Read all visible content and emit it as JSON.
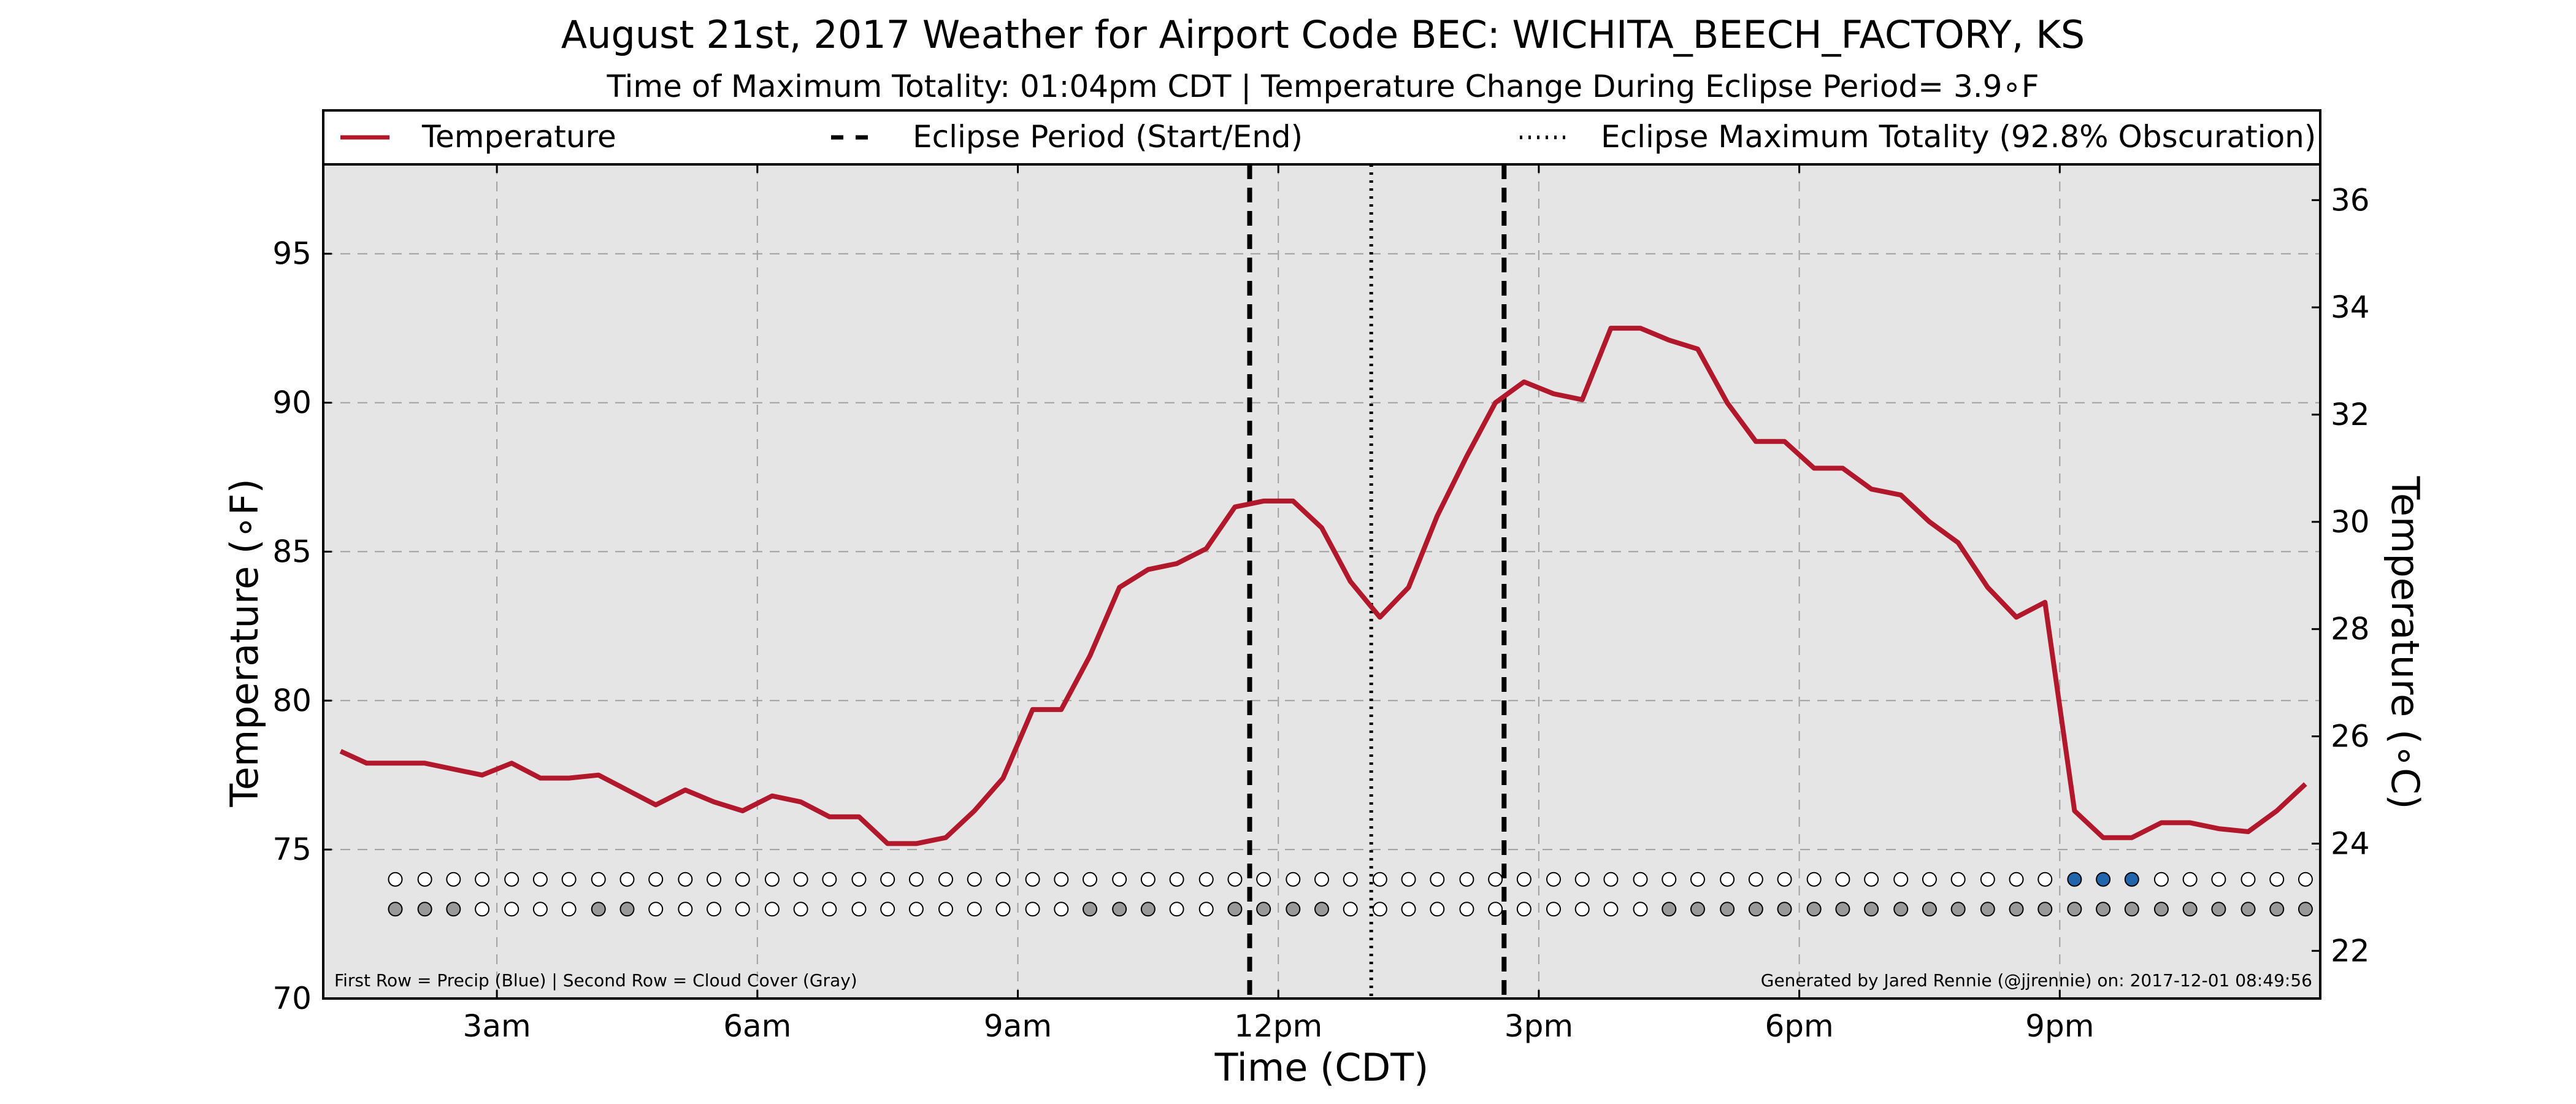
{
  "chart_data": {
    "type": "line",
    "title": "August 21st, 2017 Weather for Airport Code BEC: WICHITA_BEECH_FACTORY, KS",
    "subtitle": "Time of Maximum Totality: 01:04pm CDT | Temperature Change During Eclipse Period= 3.9∘F",
    "xlabel": "Time (CDT)",
    "ylabel": "Temperature (∘F)",
    "ylabel_right": "Temperature (∘C)",
    "xlim": [
      1.0,
      24.0
    ],
    "ylim": [
      70,
      98
    ],
    "ylim_right_c": [
      21.11,
      36.67
    ],
    "x_ticks": [
      {
        "value": 3,
        "label": "3am"
      },
      {
        "value": 6,
        "label": "6am"
      },
      {
        "value": 9,
        "label": "9am"
      },
      {
        "value": 12,
        "label": "12pm"
      },
      {
        "value": 15,
        "label": "3pm"
      },
      {
        "value": 18,
        "label": "6pm"
      },
      {
        "value": 21,
        "label": "9pm"
      }
    ],
    "y_ticks": [
      70,
      75,
      80,
      85,
      90,
      95
    ],
    "y_ticks_right": [
      22,
      24,
      26,
      28,
      30,
      32,
      34,
      36
    ],
    "grid": true,
    "legend": {
      "placement": "top",
      "entries": [
        {
          "label": "Temperature",
          "style": "solid",
          "color": "#b2182b"
        },
        {
          "label": "Eclipse Period (Start/End)",
          "style": "dashed",
          "color": "#000000"
        },
        {
          "label": "Eclipse Maximum Totality (92.8% Obscuration)",
          "style": "dotted",
          "color": "#000000"
        }
      ]
    },
    "eclipse_start": 11.67,
    "eclipse_max": 13.07,
    "eclipse_end": 14.6,
    "series": [
      {
        "name": "Temperature",
        "color": "#b2182b",
        "x": [
          1.2,
          1.5,
          1.83,
          2.17,
          2.5,
          2.83,
          3.17,
          3.5,
          3.83,
          4.17,
          4.5,
          4.83,
          5.17,
          5.5,
          5.83,
          6.17,
          6.5,
          6.83,
          7.17,
          7.5,
          7.83,
          8.17,
          8.5,
          8.83,
          9.17,
          9.5,
          9.83,
          10.17,
          10.5,
          10.83,
          11.17,
          11.5,
          11.83,
          12.17,
          12.5,
          12.83,
          13.17,
          13.5,
          13.83,
          14.17,
          14.5,
          14.83,
          15.17,
          15.5,
          15.83,
          16.17,
          16.5,
          16.83,
          17.17,
          17.5,
          17.83,
          18.17,
          18.5,
          18.83,
          19.17,
          19.5,
          19.83,
          20.17,
          20.5,
          20.83,
          21.17,
          21.5,
          21.83,
          22.17,
          22.5,
          22.83,
          23.17,
          23.5,
          23.83
        ],
        "values": [
          78.3,
          77.9,
          77.9,
          77.9,
          77.7,
          77.5,
          77.9,
          77.4,
          77.4,
          77.5,
          77.0,
          76.5,
          77.0,
          76.6,
          76.3,
          76.8,
          76.6,
          76.1,
          76.1,
          75.2,
          75.2,
          75.4,
          76.3,
          77.4,
          79.7,
          79.7,
          81.5,
          83.8,
          84.4,
          84.6,
          85.1,
          86.5,
          86.7,
          86.7,
          85.8,
          84.0,
          82.8,
          83.8,
          86.2,
          88.2,
          90.0,
          90.7,
          90.3,
          90.1,
          92.5,
          92.5,
          92.1,
          91.8,
          90.0,
          88.7,
          88.7,
          87.8,
          87.8,
          87.1,
          86.9,
          86.0,
          85.3,
          83.8,
          82.8,
          83.3,
          76.3,
          75.4,
          75.4,
          75.9,
          75.9,
          75.7,
          75.6,
          76.3,
          77.2
        ]
      }
    ],
    "precip_row": {
      "label": "Precip",
      "x": [
        1.83,
        2.17,
        2.5,
        2.83,
        3.17,
        3.5,
        3.83,
        4.17,
        4.5,
        4.83,
        5.17,
        5.5,
        5.83,
        6.17,
        6.5,
        6.83,
        7.17,
        7.5,
        7.83,
        8.17,
        8.5,
        8.83,
        9.17,
        9.5,
        9.83,
        10.17,
        10.5,
        10.83,
        11.17,
        11.5,
        11.83,
        12.17,
        12.5,
        12.83,
        13.17,
        13.5,
        13.83,
        14.17,
        14.5,
        14.83,
        15.17,
        15.5,
        15.83,
        16.17,
        16.5,
        16.83,
        17.17,
        17.5,
        17.83,
        18.17,
        18.5,
        18.83,
        19.17,
        19.5,
        19.83,
        20.17,
        20.5,
        20.83,
        21.17,
        21.5,
        21.83,
        22.17,
        22.5,
        22.83,
        23.17,
        23.5,
        23.83
      ],
      "filled": [
        0,
        0,
        0,
        0,
        0,
        0,
        0,
        0,
        0,
        0,
        0,
        0,
        0,
        0,
        0,
        0,
        0,
        0,
        0,
        0,
        0,
        0,
        0,
        0,
        0,
        0,
        0,
        0,
        0,
        0,
        0,
        0,
        0,
        0,
        0,
        0,
        0,
        0,
        0,
        0,
        0,
        0,
        0,
        0,
        0,
        0,
        0,
        0,
        0,
        0,
        0,
        0,
        0,
        0,
        0,
        0,
        0,
        0,
        1,
        1,
        1,
        0,
        0,
        0,
        0,
        0,
        0
      ],
      "fill_color": "#2166ac"
    },
    "cloud_row": {
      "label": "Cloud Cover",
      "x": [
        1.83,
        2.17,
        2.5,
        2.83,
        3.17,
        3.5,
        3.83,
        4.17,
        4.5,
        4.83,
        5.17,
        5.5,
        5.83,
        6.17,
        6.5,
        6.83,
        7.17,
        7.5,
        7.83,
        8.17,
        8.5,
        8.83,
        9.17,
        9.5,
        9.83,
        10.17,
        10.5,
        10.83,
        11.17,
        11.5,
        11.83,
        12.17,
        12.5,
        12.83,
        13.17,
        13.5,
        13.83,
        14.17,
        14.5,
        14.83,
        15.17,
        15.5,
        15.83,
        16.17,
        16.5,
        16.83,
        17.17,
        17.5,
        17.83,
        18.17,
        18.5,
        18.83,
        19.17,
        19.5,
        19.83,
        20.17,
        20.5,
        20.83,
        21.17,
        21.5,
        21.83,
        22.17,
        22.5,
        22.83,
        23.17,
        23.5,
        23.83
      ],
      "filled": [
        1,
        1,
        1,
        0,
        0,
        0,
        0,
        1,
        1,
        0,
        0,
        0,
        0,
        0,
        0,
        0,
        0,
        0,
        0,
        0,
        0,
        0,
        0,
        0,
        1,
        1,
        1,
        0,
        0,
        1,
        1,
        1,
        1,
        0,
        0,
        0,
        0,
        0,
        0,
        0,
        0,
        0,
        0,
        0,
        1,
        1,
        1,
        1,
        1,
        1,
        1,
        1,
        1,
        1,
        1,
        1,
        1,
        1,
        1,
        1,
        1,
        1,
        1,
        1,
        1,
        1,
        1
      ],
      "fill_color": "#999999"
    },
    "footnote_left": "First Row = Precip (Blue) | Second Row = Cloud Cover (Gray)",
    "footnote_right": "Generated by Jared Rennie (@jjrennie) on: 2017-12-01 08:49:56",
    "colors": {
      "plot_background": "#e5e5e5",
      "temperature_line": "#b2182b",
      "precip_fill": "#2166ac",
      "cloud_fill": "#999999",
      "grid": "#a0a0a0"
    }
  }
}
